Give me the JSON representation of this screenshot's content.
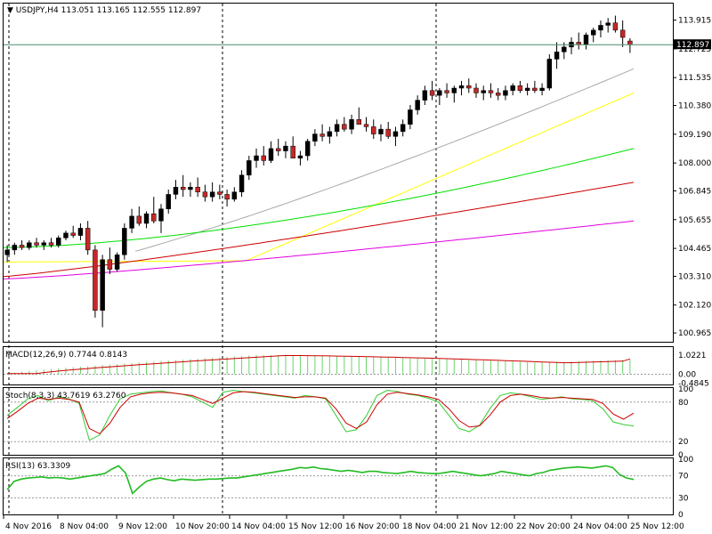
{
  "header": {
    "symbol": "USDJPY,H4",
    "ohlc": "113.051 113.165 112.555 112.897"
  },
  "current_price_label": "112.897",
  "colors": {
    "bull": "#000000",
    "bear": "#c62828",
    "candle_border": "#000000",
    "ma_gray": "#a8a8a8",
    "ma_yellow": "#ffff00",
    "ma_green": "#00e000",
    "ma_red": "#cc0000",
    "ma_magenta": "#e000e0",
    "macd_hist": "#6cd36c",
    "signal": "#cc0000",
    "stoch_main": "#33cc33",
    "stoch_signal": "#cc0000",
    "rsi": "#22bb22",
    "current_line": "#4a8a6a"
  },
  "chart_data": [
    {
      "type": "candlestick",
      "title": "USDJPY,H4 113.051 113.165 112.555 112.897",
      "y_ticks": [
        "113.915",
        "112.725",
        "111.535",
        "110.380",
        "109.190",
        "108.000",
        "106.845",
        "105.655",
        "104.465",
        "103.310",
        "102.120",
        "100.965"
      ],
      "y_tick_values": [
        113.915,
        112.725,
        111.535,
        110.38,
        109.19,
        108.0,
        106.845,
        105.655,
        104.465,
        103.31,
        102.12,
        100.965
      ],
      "ylim": [
        100.6,
        114.6
      ],
      "x_tick_labels": [
        "4 Nov 2016",
        "8 Nov 04:00",
        "9 Nov 12:00",
        "10 Nov 20:00",
        "14 Nov 04:00",
        "15 Nov 12:00",
        "16 Nov 20:00",
        "18 Nov 04:00",
        "21 Nov 12:00",
        "22 Nov 20:00",
        "24 Nov 04:00",
        "25 Nov 12:00"
      ],
      "current_price": 112.897,
      "series": [
        {
          "name": "",
          "values": [
            [
              104.2,
              104.6,
              103.9,
              104.4
            ],
            [
              104.4,
              104.7,
              104.2,
              104.6
            ],
            [
              104.6,
              104.8,
              104.4,
              104.5
            ],
            [
              104.5,
              104.8,
              104.4,
              104.7
            ],
            [
              104.7,
              104.9,
              104.5,
              104.6
            ],
            [
              104.6,
              104.8,
              104.4,
              104.7
            ],
            [
              104.7,
              104.9,
              104.5,
              104.6
            ],
            [
              104.6,
              105.0,
              104.5,
              104.9
            ],
            [
              104.9,
              105.2,
              104.8,
              105.1
            ],
            [
              105.1,
              105.4,
              104.9,
              105.0
            ],
            [
              105.0,
              105.5,
              104.8,
              105.3
            ],
            [
              105.3,
              105.6,
              104.2,
              104.4
            ],
            [
              104.4,
              104.6,
              101.6,
              101.9
            ],
            [
              101.9,
              104.2,
              101.2,
              104.0
            ],
            [
              104.0,
              104.5,
              103.4,
              103.6
            ],
            [
              103.6,
              104.3,
              103.5,
              104.2
            ],
            [
              104.2,
              105.5,
              104.0,
              105.3
            ],
            [
              105.3,
              106.1,
              105.1,
              105.8
            ],
            [
              105.8,
              106.2,
              105.4,
              105.5
            ],
            [
              105.5,
              106.0,
              105.3,
              105.9
            ],
            [
              105.9,
              106.6,
              105.5,
              105.6
            ],
            [
              105.6,
              106.3,
              105.1,
              106.1
            ],
            [
              106.1,
              106.9,
              105.9,
              106.7
            ],
            [
              106.7,
              107.3,
              106.5,
              107.0
            ],
            [
              107.0,
              107.5,
              106.6,
              106.9
            ],
            [
              106.9,
              107.2,
              106.6,
              107.0
            ],
            [
              107.0,
              107.4,
              106.6,
              106.8
            ],
            [
              106.8,
              107.1,
              106.4,
              106.6
            ],
            [
              106.6,
              107.2,
              106.4,
              106.8
            ],
            [
              106.8,
              107.1,
              106.5,
              106.7
            ],
            [
              106.7,
              106.9,
              106.2,
              106.5
            ],
            [
              106.5,
              107.0,
              106.4,
              106.8
            ],
            [
              106.8,
              107.7,
              106.6,
              107.5
            ],
            [
              107.5,
              108.3,
              107.3,
              108.1
            ],
            [
              108.1,
              108.6,
              107.8,
              108.3
            ],
            [
              108.3,
              108.7,
              107.9,
              108.1
            ],
            [
              108.1,
              108.9,
              108.0,
              108.6
            ],
            [
              108.6,
              109.0,
              108.3,
              108.5
            ],
            [
              108.5,
              108.9,
              108.2,
              108.7
            ],
            [
              108.7,
              109.1,
              108.5,
              108.2
            ],
            [
              108.2,
              108.5,
              107.9,
              108.3
            ],
            [
              108.3,
              109.0,
              108.1,
              108.9
            ],
            [
              108.9,
              109.4,
              108.7,
              109.2
            ],
            [
              109.2,
              109.6,
              108.9,
              109.1
            ],
            [
              109.1,
              109.5,
              108.8,
              109.3
            ],
            [
              109.3,
              109.8,
              109.1,
              109.6
            ],
            [
              109.6,
              109.9,
              109.3,
              109.4
            ],
            [
              109.4,
              110.0,
              109.2,
              109.8
            ],
            [
              109.8,
              110.3,
              109.6,
              109.6
            ],
            [
              109.6,
              109.9,
              109.3,
              109.5
            ],
            [
              109.5,
              109.8,
              109.0,
              109.2
            ],
            [
              109.2,
              109.6,
              108.9,
              109.4
            ],
            [
              109.4,
              109.7,
              109.0,
              109.1
            ],
            [
              109.1,
              109.5,
              108.7,
              109.3
            ],
            [
              109.3,
              109.8,
              109.1,
              109.6
            ],
            [
              109.6,
              110.4,
              109.4,
              110.2
            ],
            [
              110.2,
              110.8,
              110.0,
              110.6
            ],
            [
              110.6,
              111.2,
              110.4,
              111.0
            ],
            [
              111.0,
              111.4,
              110.6,
              110.8
            ],
            [
              110.8,
              111.1,
              110.4,
              111.0
            ],
            [
              111.0,
              111.3,
              110.7,
              110.9
            ],
            [
              110.9,
              111.2,
              110.5,
              111.1
            ],
            [
              111.1,
              111.4,
              110.8,
              111.2
            ],
            [
              111.2,
              111.5,
              110.9,
              111.1
            ],
            [
              111.1,
              111.3,
              110.7,
              110.9
            ],
            [
              110.9,
              111.2,
              110.6,
              111.0
            ],
            [
              111.0,
              111.3,
              110.7,
              110.9
            ],
            [
              110.9,
              111.1,
              110.6,
              110.8
            ],
            [
              110.8,
              111.2,
              110.6,
              111.0
            ],
            [
              111.0,
              111.3,
              110.8,
              111.2
            ],
            [
              111.2,
              111.4,
              110.9,
              111.0
            ],
            [
              111.0,
              111.3,
              110.8,
              111.1
            ],
            [
              111.1,
              111.4,
              110.9,
              111.0
            ],
            [
              111.0,
              111.3,
              110.8,
              111.1
            ],
            [
              111.1,
              112.5,
              111.0,
              112.3
            ],
            [
              112.3,
              113.0,
              111.9,
              112.6
            ],
            [
              112.6,
              113.0,
              112.3,
              112.8
            ],
            [
              112.8,
              113.2,
              112.5,
              113.0
            ],
            [
              113.0,
              113.4,
              112.7,
              112.9
            ],
            [
              112.9,
              113.4,
              112.7,
              113.3
            ],
            [
              113.3,
              113.6,
              113.0,
              113.5
            ],
            [
              113.5,
              113.9,
              113.2,
              113.7
            ],
            [
              113.7,
              114.0,
              113.4,
              113.8
            ],
            [
              113.8,
              114.1,
              113.4,
              113.5
            ],
            [
              113.5,
              113.9,
              112.8,
              113.2
            ],
            [
              113.05,
              113.165,
              112.555,
              112.897
            ]
          ]
        }
      ],
      "moving_averages": [
        {
          "name": "",
          "start": 103.1,
          "end": 111.9
        },
        {
          "name": "",
          "start": 103.9,
          "end": 110.9
        },
        {
          "name": "",
          "start": 104.5,
          "end": 108.6
        },
        {
          "name": "",
          "start": 103.3,
          "end": 107.2
        },
        {
          "name": "",
          "start": 103.2,
          "end": 105.6
        }
      ]
    },
    {
      "type": "bar",
      "title": "MACD(12,26,9) 0.7744 0.8143",
      "y_ticks": [
        "1.0221",
        "0.00",
        "-0.4845"
      ],
      "y_tick_values": [
        1.0221,
        0.0,
        -0.4845
      ],
      "ylim": [
        -0.55,
        1.45
      ],
      "hist_start": 0.03,
      "hist_peak": 1.0221,
      "hist_end": 0.7744,
      "signal_end": 0.8143
    },
    {
      "type": "line",
      "title": "Stoch(8,3,3) 43.7619 63.2760",
      "y_ticks": [
        "100",
        "80",
        "20",
        "0"
      ],
      "y_tick_values": [
        100,
        80,
        20,
        0
      ],
      "ylim": [
        0,
        100
      ],
      "series": [
        {
          "name": "",
          "values": [
            60,
            72,
            85,
            90,
            82,
            88,
            85,
            78,
            22,
            30,
            60,
            85,
            92,
            94,
            96,
            97,
            94,
            92,
            88,
            80,
            72,
            95,
            98,
            96,
            94,
            92,
            90,
            88,
            86,
            90,
            88,
            85,
            60,
            35,
            38,
            60,
            90,
            98,
            96,
            92,
            90,
            86,
            80,
            60,
            40,
            35,
            45,
            70,
            90,
            94,
            92,
            88,
            84,
            86,
            88,
            85,
            84,
            82,
            70,
            50,
            46,
            43.76
          ]
        },
        {
          "name": "",
          "values": [
            55,
            66,
            78,
            86,
            84,
            86,
            84,
            80,
            40,
            32,
            48,
            72,
            88,
            92,
            94,
            95,
            94,
            92,
            90,
            84,
            78,
            86,
            94,
            96,
            95,
            93,
            91,
            89,
            87,
            88,
            88,
            86,
            70,
            48,
            40,
            50,
            76,
            92,
            95,
            93,
            91,
            88,
            84,
            70,
            52,
            42,
            44,
            60,
            80,
            90,
            92,
            90,
            87,
            86,
            87,
            86,
            85,
            84,
            78,
            62,
            54,
            63.28
          ]
        }
      ]
    },
    {
      "type": "line",
      "title": "RSI(13) 63.3309",
      "y_ticks": [
        "100",
        "70",
        "30",
        "0"
      ],
      "y_tick_values": [
        100,
        70,
        30,
        0
      ],
      "ylim": [
        0,
        100
      ],
      "series": [
        {
          "name": "",
          "values": [
            45,
            60,
            64,
            66,
            67,
            68,
            66,
            67,
            66,
            64,
            66,
            68,
            70,
            72,
            74,
            82,
            88,
            75,
            38,
            50,
            60,
            64,
            66,
            63,
            61,
            64,
            63,
            62,
            63,
            64,
            64,
            65,
            66,
            66,
            68,
            70,
            72,
            74,
            76,
            78,
            80,
            82,
            85,
            84,
            86,
            83,
            82,
            80,
            78,
            80,
            78,
            76,
            78,
            78,
            76,
            75,
            74,
            76,
            78,
            76,
            75,
            74,
            74,
            76,
            78,
            76,
            74,
            72,
            70,
            72,
            74,
            78,
            76,
            74,
            72,
            70,
            74,
            76,
            80,
            82,
            84,
            85,
            86,
            85,
            84,
            86,
            88,
            85,
            72,
            66,
            63.33
          ]
        }
      ]
    }
  ]
}
